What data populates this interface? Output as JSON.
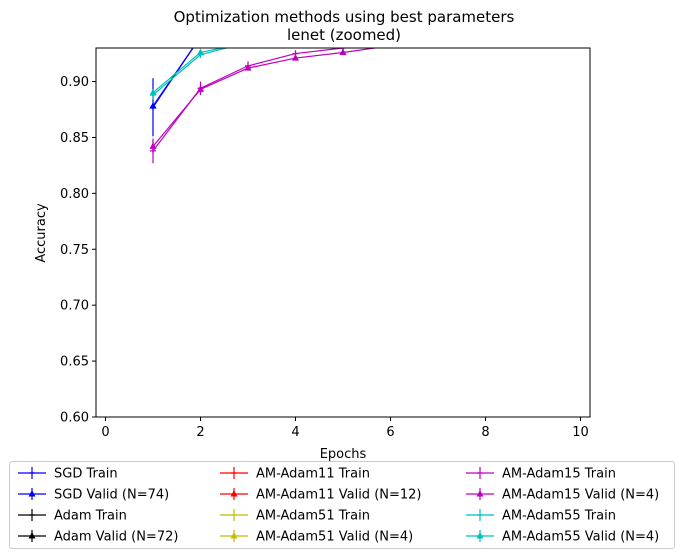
{
  "chart_data": {
    "type": "line",
    "title": "Optimization methods using best parameters",
    "subtitle": "lenet (zoomed)",
    "xlabel": "Epochs",
    "ylabel": "Accuracy",
    "xlim": [
      -0.2,
      10.2
    ],
    "ylim": [
      0.6,
      0.93
    ],
    "xticks": [
      0,
      2,
      4,
      6,
      8,
      10
    ],
    "yticks": [
      0.6,
      0.65,
      0.7,
      0.75,
      0.8,
      0.85,
      0.9
    ],
    "legend_placement": "bottom",
    "series": [
      {
        "name": "SGD Train",
        "color": "#0000ff",
        "marker": "plus",
        "x": [
          1,
          2
        ],
        "y": [
          0.877,
          0.94
        ],
        "err": [
          0.026,
          0.0
        ]
      },
      {
        "name": "SGD Valid (N=74)",
        "color": "#0000ff",
        "marker": "triangle",
        "x": [
          1,
          2
        ],
        "y": [
          0.878,
          0.94
        ],
        "err": [
          0.0,
          0.0
        ]
      },
      {
        "name": "Adam Train",
        "color": "#000000",
        "marker": "plus",
        "x": [],
        "y": [],
        "err": []
      },
      {
        "name": "Adam Valid (N=72)",
        "color": "#000000",
        "marker": "triangle",
        "x": [],
        "y": [],
        "err": []
      },
      {
        "name": "AM-Adam11 Train",
        "color": "#ff0000",
        "marker": "plus",
        "x": [],
        "y": [],
        "err": []
      },
      {
        "name": "AM-Adam11 Valid (N=12)",
        "color": "#ff0000",
        "marker": "triangle",
        "x": [],
        "y": [],
        "err": []
      },
      {
        "name": "AM-Adam51 Train",
        "color": "#bfbf00",
        "marker": "plus",
        "x": [],
        "y": [],
        "err": []
      },
      {
        "name": "AM-Adam51 Valid (N=4)",
        "color": "#bfbf00",
        "marker": "triangle",
        "x": [],
        "y": [],
        "err": []
      },
      {
        "name": "AM-Adam15 Train",
        "color": "#bf00bf",
        "marker": "plus",
        "x": [
          1,
          2,
          3,
          4,
          5,
          6
        ],
        "y": [
          0.838,
          0.894,
          0.914,
          0.925,
          0.93,
          0.935
        ],
        "err": [
          0.011,
          0.006,
          0.004,
          0.003,
          0.003,
          0.002
        ]
      },
      {
        "name": "AM-Adam15 Valid (N=4)",
        "color": "#bf00bf",
        "marker": "triangle",
        "x": [
          1,
          2,
          3,
          4,
          5,
          6
        ],
        "y": [
          0.842,
          0.893,
          0.912,
          0.921,
          0.926,
          0.932
        ],
        "err": [
          0.005,
          0.003,
          0.002,
          0.002,
          0.002,
          0.002
        ]
      },
      {
        "name": "AM-Adam55 Train",
        "color": "#00bfbf",
        "marker": "plus",
        "x": [
          1,
          2,
          3
        ],
        "y": [
          0.888,
          0.924,
          0.935
        ],
        "err": [
          0.004,
          0.003,
          0.002
        ]
      },
      {
        "name": "AM-Adam55 Valid (N=4)",
        "color": "#00bfbf",
        "marker": "triangle",
        "x": [
          1,
          2,
          3
        ],
        "y": [
          0.89,
          0.926,
          0.935
        ],
        "err": [
          0.003,
          0.002,
          0.002
        ]
      }
    ]
  }
}
